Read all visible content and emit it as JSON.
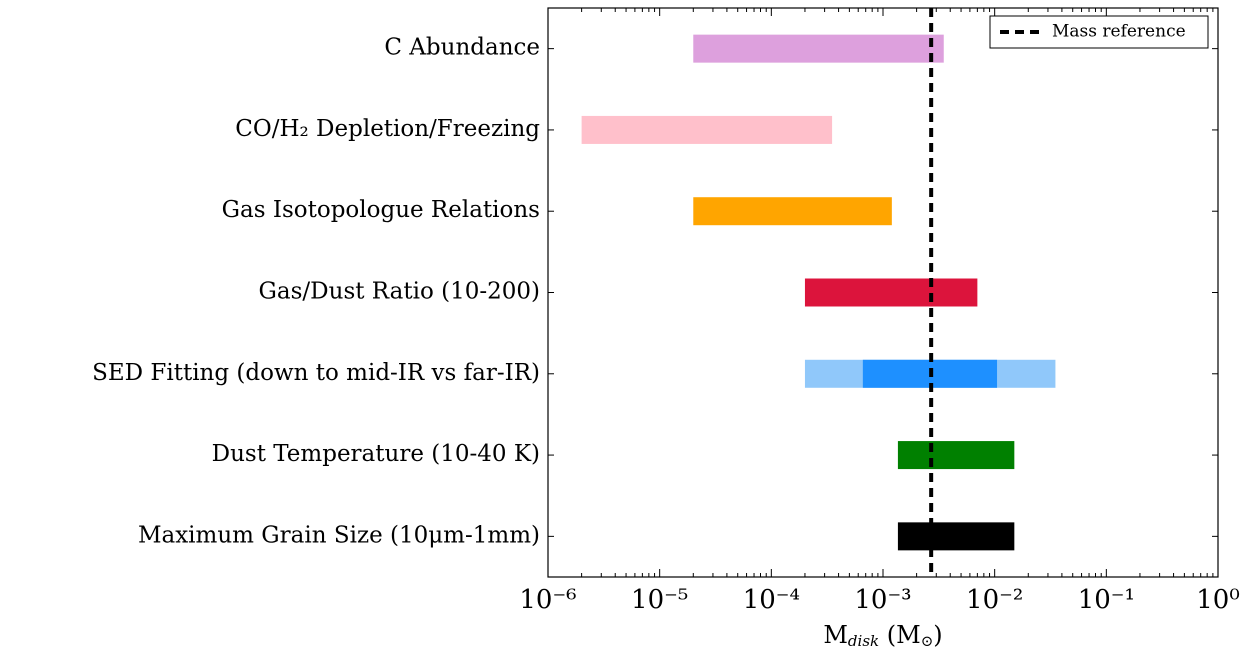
{
  "chart_data": {
    "type": "range-bar",
    "categories": [
      "C Abundance",
      "CO/H₂ Depletion/Freezing",
      "Gas Isotopologue Relations",
      "Gas/Dust Ratio (10-200)",
      "SED Fitting (down to mid-IR vs far-IR)",
      "Dust Temperature (10-40 K)",
      "Maximum Grain Size (10μm-1mm)"
    ],
    "bars": [
      [
        {
          "color": "#dda0dd",
          "low": 2e-05,
          "high": 0.0035
        }
      ],
      [
        {
          "color": "#ffc0cb",
          "low": 2e-06,
          "high": 0.00035
        }
      ],
      [
        {
          "color": "#ffa500",
          "low": 2e-05,
          "high": 0.0012
        }
      ],
      [
        {
          "color": "#dc143c",
          "low": 0.0002,
          "high": 0.007
        }
      ],
      [
        {
          "color": "#90c8fa",
          "low": 0.0002,
          "high": 0.035
        },
        {
          "color": "#1e90ff",
          "low": 0.00066,
          "high": 0.0105
        }
      ],
      [
        {
          "color": "#008000",
          "low": 0.00136,
          "high": 0.015
        }
      ],
      [
        {
          "color": "#000000",
          "low": 0.00136,
          "high": 0.015
        }
      ]
    ],
    "reference": {
      "name": "Mass reference",
      "value": 0.0027,
      "color": "#000000"
    },
    "xlabel": [
      "M",
      "disk",
      " (M",
      "⊙",
      ")"
    ],
    "xlim": [
      1e-06,
      1
    ],
    "xscale": "log",
    "xticks": [
      {
        "value": 1e-06,
        "label": "10⁻⁶"
      },
      {
        "value": 1e-05,
        "label": "10⁻⁵"
      },
      {
        "value": 0.0001,
        "label": "10⁻⁴"
      },
      {
        "value": 0.001,
        "label": "10⁻³"
      },
      {
        "value": 0.01,
        "label": "10⁻²"
      },
      {
        "value": 0.1,
        "label": "10⁻¹"
      },
      {
        "value": 1,
        "label": "10⁰"
      }
    ],
    "legend": "upper right"
  }
}
